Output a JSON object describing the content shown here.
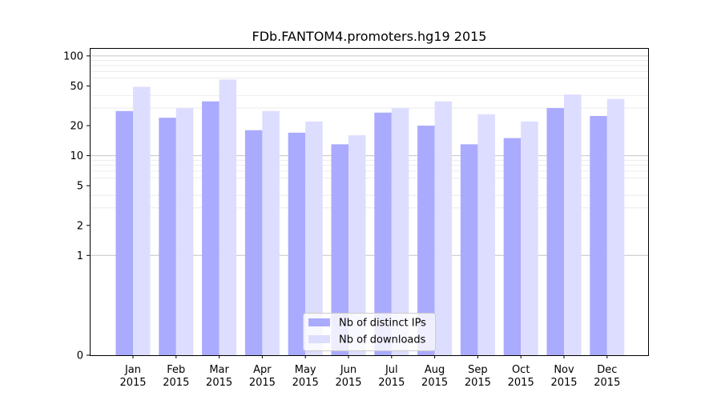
{
  "chart_data": {
    "type": "bar",
    "title": "FDb.FANTOM4.promoters.hg19 2015",
    "xlabel": "",
    "ylabel": "",
    "yscale": "symlog",
    "ylim": [
      0,
      120
    ],
    "yticks": [
      0,
      1,
      2,
      5,
      10,
      20,
      50,
      100
    ],
    "ytick_labels": [
      "0",
      "1",
      "2",
      "5",
      "10",
      "20",
      "50",
      "100"
    ],
    "grid": "horizontal",
    "legend_position": "bottom-center",
    "categories": [
      {
        "month": "Jan",
        "year": "2015"
      },
      {
        "month": "Feb",
        "year": "2015"
      },
      {
        "month": "Mar",
        "year": "2015"
      },
      {
        "month": "Apr",
        "year": "2015"
      },
      {
        "month": "May",
        "year": "2015"
      },
      {
        "month": "Jun",
        "year": "2015"
      },
      {
        "month": "Jul",
        "year": "2015"
      },
      {
        "month": "Aug",
        "year": "2015"
      },
      {
        "month": "Sep",
        "year": "2015"
      },
      {
        "month": "Oct",
        "year": "2015"
      },
      {
        "month": "Nov",
        "year": "2015"
      },
      {
        "month": "Dec",
        "year": "2015"
      }
    ],
    "series": [
      {
        "name": "Nb of distinct IPs",
        "color": "#aaaaff",
        "values": [
          28,
          24,
          35,
          18,
          17,
          13,
          27,
          20,
          13,
          15,
          30,
          25
        ]
      },
      {
        "name": "Nb of downloads",
        "color": "#ddddff",
        "values": [
          49,
          30,
          58,
          28,
          22,
          16,
          30,
          35,
          26,
          22,
          41,
          37
        ]
      }
    ]
  }
}
